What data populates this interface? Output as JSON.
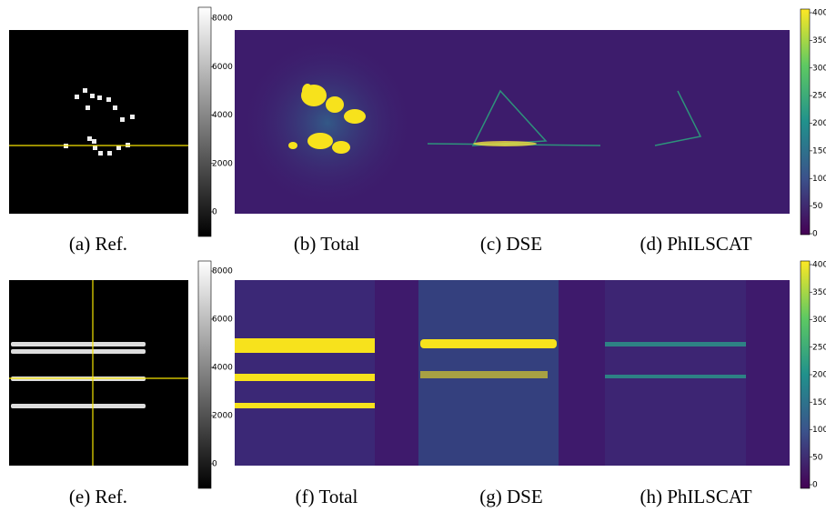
{
  "figure": {
    "rows": [
      {
        "captions": [
          "(a) Ref.",
          "(b) Total",
          "(c) DSE",
          "(d) PhILSCAT"
        ],
        "gray_ticks": [
          8000,
          6000,
          4000,
          2000,
          0
        ],
        "viridis_ticks": [
          400,
          350,
          300,
          250,
          200,
          150,
          100,
          50,
          0
        ]
      },
      {
        "captions": [
          "(e) Ref.",
          "(f) Total",
          "(g) DSE",
          "(h) PhILSCAT"
        ],
        "gray_ticks": [
          8000,
          6000,
          4000,
          2000,
          0
        ],
        "viridis_ticks": [
          400,
          350,
          300,
          250,
          200,
          150,
          100,
          50,
          0
        ]
      }
    ]
  }
}
